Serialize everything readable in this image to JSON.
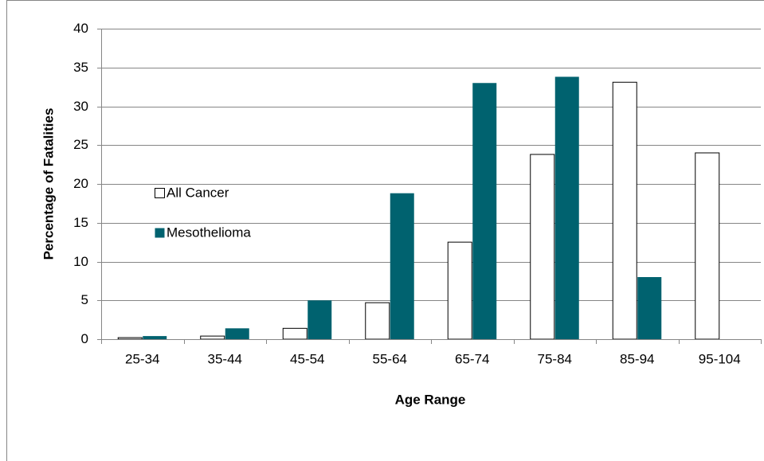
{
  "chart_data": {
    "type": "bar",
    "x_label": "Age Range",
    "y_label": "Percentage of Fatalities",
    "categories": [
      "25-34",
      "35-44",
      "45-54",
      "55-64",
      "65-74",
      "75-84",
      "85-94",
      "95-104"
    ],
    "series": [
      {
        "name": "All Cancer",
        "color": "#ffffff",
        "values": [
          0.2,
          0.4,
          1.4,
          4.7,
          12.5,
          23.8,
          33.1,
          24.0
        ]
      },
      {
        "name": "Mesothelioma",
        "color": "#00626f",
        "values": [
          0.4,
          1.4,
          5.0,
          18.8,
          33.0,
          33.8,
          8.0,
          null
        ]
      }
    ],
    "ylim": [
      0,
      40
    ],
    "yticks": [
      0,
      5,
      10,
      15,
      20,
      25,
      30,
      35,
      40
    ],
    "grid": true
  }
}
